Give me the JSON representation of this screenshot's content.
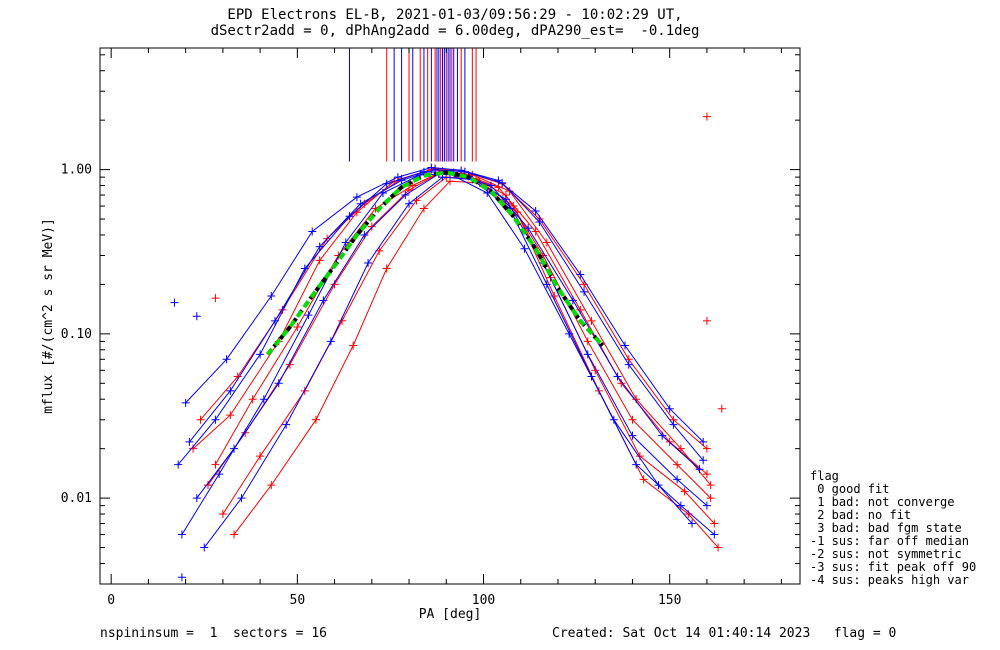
{
  "title_line1": "EPD Electrons EL-B, 2021-01-03/09:56:29 - 10:02:29 UT,",
  "title_line2": "dSectr2add = 0, dPhAng2add = 6.00deg, dPA290_est=  -0.1deg",
  "footer_left": "nspininsum =  1  sectors = 16",
  "footer_right": "Created: Sat Oct 14 01:40:14 2023   flag = 0",
  "legend": {
    "title": "flag",
    "items": [
      " 0 good fit",
      " 1 bad: not converge",
      " 2 bad: no fit",
      " 3 bad: bad fgm state",
      "-1 sus: far off median",
      "-2 sus: not symmetric",
      "-3 sus: fit peak off 90",
      "-4 sus: peaks high var"
    ]
  },
  "colors": {
    "series_red": "#ff0000",
    "series_blue": "#0000ff",
    "fit_green": "#00dd00",
    "fit_black": "#000000"
  },
  "chart_data": {
    "type": "line",
    "xlabel": "PA [deg]",
    "ylabel": "mflux [#/(cm^2 s sr MeV)]",
    "xlim": [
      -3,
      185
    ],
    "ylim": [
      0.003,
      5.5
    ],
    "yscale": "log",
    "xticks": [
      0,
      50,
      100,
      150
    ],
    "xtick_labels": [
      "0",
      "50",
      "100",
      "150"
    ],
    "yticks": [
      0.01,
      0.1,
      1.0
    ],
    "ytick_labels": [
      "0.01",
      "0.10",
      "1.00"
    ],
    "grid": false,
    "legend_position": "lower-right outside",
    "series": [
      {
        "color": "red",
        "pa": [
          22,
          32,
          45,
          56,
          66,
          76,
          86,
          94,
          104,
          114,
          126,
          137,
          150,
          160
        ],
        "flux": [
          0.02,
          0.032,
          0.09,
          0.28,
          0.55,
          0.85,
          1.0,
          0.95,
          0.78,
          0.42,
          0.14,
          0.05,
          0.022,
          0.014
        ]
      },
      {
        "color": "red",
        "pa": [
          26,
          36,
          48,
          60,
          70,
          80,
          88,
          96,
          106,
          116,
          128,
          140,
          152,
          161
        ],
        "flux": [
          0.012,
          0.025,
          0.065,
          0.2,
          0.45,
          0.75,
          0.95,
          0.92,
          0.7,
          0.3,
          0.09,
          0.03,
          0.016,
          0.01
        ]
      },
      {
        "color": "red",
        "pa": [
          30,
          40,
          52,
          62,
          72,
          82,
          90,
          98,
          108,
          118,
          130,
          142,
          154,
          162
        ],
        "flux": [
          0.008,
          0.018,
          0.045,
          0.12,
          0.32,
          0.65,
          0.9,
          0.88,
          0.6,
          0.22,
          0.06,
          0.018,
          0.011,
          0.007
        ]
      },
      {
        "color": "red",
        "pa": [
          24,
          34,
          46,
          58,
          68,
          78,
          87,
          95,
          105,
          115,
          127,
          139,
          151,
          160
        ],
        "flux": [
          0.03,
          0.055,
          0.14,
          0.38,
          0.62,
          0.88,
          1.02,
          0.97,
          0.82,
          0.5,
          0.2,
          0.07,
          0.03,
          0.02
        ]
      },
      {
        "color": "red",
        "pa": [
          33,
          43,
          55,
          65,
          74,
          84,
          91,
          99,
          109,
          119,
          131,
          143,
          155,
          163
        ],
        "flux": [
          0.006,
          0.012,
          0.03,
          0.085,
          0.25,
          0.58,
          0.85,
          0.83,
          0.55,
          0.17,
          0.045,
          0.013,
          0.008,
          0.005
        ]
      },
      {
        "color": "red",
        "pa": [
          28,
          38,
          50,
          61,
          71,
          81,
          89,
          97,
          107,
          117,
          129,
          141,
          153,
          161
        ],
        "flux": [
          0.016,
          0.04,
          0.11,
          0.3,
          0.58,
          0.8,
          0.98,
          0.93,
          0.74,
          0.36,
          0.12,
          0.04,
          0.02,
          0.012
        ]
      },
      {
        "color": "blue",
        "pa": [
          18,
          28,
          40,
          52,
          64,
          74,
          84,
          92,
          102,
          112,
          124,
          136,
          148,
          158
        ],
        "flux": [
          0.016,
          0.03,
          0.075,
          0.25,
          0.52,
          0.82,
          0.97,
          0.96,
          0.8,
          0.44,
          0.16,
          0.055,
          0.024,
          0.015
        ]
      },
      {
        "color": "blue",
        "pa": [
          20,
          31,
          43,
          54,
          66,
          77,
          86,
          94,
          104,
          114,
          126,
          138,
          150,
          159
        ],
        "flux": [
          0.038,
          0.07,
          0.17,
          0.42,
          0.68,
          0.9,
          1.03,
          0.99,
          0.86,
          0.56,
          0.23,
          0.085,
          0.035,
          0.022
        ]
      },
      {
        "color": "blue",
        "pa": [
          23,
          33,
          45,
          57,
          68,
          79,
          88,
          96,
          106,
          116,
          128,
          140,
          152,
          160
        ],
        "flux": [
          0.01,
          0.02,
          0.05,
          0.16,
          0.4,
          0.7,
          0.94,
          0.91,
          0.66,
          0.27,
          0.075,
          0.024,
          0.013,
          0.009
        ]
      },
      {
        "color": "blue",
        "pa": [
          19,
          29,
          41,
          53,
          63,
          73,
          83,
          91,
          101,
          111,
          123,
          135,
          147,
          156
        ],
        "flux": [
          0.006,
          0.014,
          0.04,
          0.13,
          0.36,
          0.72,
          0.93,
          0.94,
          0.72,
          0.33,
          0.1,
          0.03,
          0.012,
          0.007
        ]
      },
      {
        "color": "blue",
        "pa": [
          21,
          32,
          44,
          56,
          67,
          78,
          87,
          95,
          105,
          115,
          127,
          139,
          151,
          159
        ],
        "flux": [
          0.022,
          0.045,
          0.12,
          0.34,
          0.62,
          0.86,
          1.0,
          0.97,
          0.83,
          0.48,
          0.18,
          0.065,
          0.028,
          0.017
        ]
      },
      {
        "color": "blue",
        "pa": [
          25,
          35,
          47,
          59,
          69,
          80,
          89,
          97,
          107,
          117,
          129,
          141,
          153,
          162
        ],
        "flux": [
          0.005,
          0.01,
          0.028,
          0.09,
          0.27,
          0.62,
          0.9,
          0.87,
          0.58,
          0.2,
          0.055,
          0.016,
          0.009,
          0.006
        ]
      }
    ],
    "isolated_points": [
      {
        "color": "red",
        "pa": 160,
        "flux": 2.1
      },
      {
        "color": "blue",
        "pa": 17,
        "flux": 0.155
      },
      {
        "color": "blue",
        "pa": 23,
        "flux": 0.128
      },
      {
        "color": "red",
        "pa": 28,
        "flux": 0.165
      },
      {
        "color": "red",
        "pa": 164,
        "flux": 0.035
      },
      {
        "color": "blue",
        "pa": 19,
        "flux": 0.0033
      },
      {
        "color": "red",
        "pa": 160,
        "flux": 0.12
      }
    ],
    "spike_lines": [
      {
        "color": "blue",
        "pa": 64
      },
      {
        "color": "red",
        "pa": 74
      },
      {
        "color": "blue",
        "pa": 76
      },
      {
        "color": "blue",
        "pa": 78
      },
      {
        "color": "red",
        "pa": 80
      },
      {
        "color": "blue",
        "pa": 81
      },
      {
        "color": "red",
        "pa": 83
      },
      {
        "color": "blue",
        "pa": 84
      },
      {
        "color": "red",
        "pa": 85
      },
      {
        "color": "blue",
        "pa": 86
      },
      {
        "color": "red",
        "pa": 87
      },
      {
        "color": "blue",
        "pa": 87.5
      },
      {
        "color": "blue",
        "pa": 88
      },
      {
        "color": "red",
        "pa": 88.5
      },
      {
        "color": "blue",
        "pa": 89
      },
      {
        "color": "blue",
        "pa": 89.5
      },
      {
        "color": "red",
        "pa": 90
      },
      {
        "color": "blue",
        "pa": 90.5
      },
      {
        "color": "blue",
        "pa": 91
      },
      {
        "color": "red",
        "pa": 91.5
      },
      {
        "color": "blue",
        "pa": 92
      },
      {
        "color": "blue",
        "pa": 93
      },
      {
        "color": "red",
        "pa": 94
      },
      {
        "color": "blue",
        "pa": 95
      },
      {
        "color": "red",
        "pa": 97
      },
      {
        "color": "red",
        "pa": 98
      }
    ],
    "spike_bottom_flux": 1.12,
    "fit_curve": {
      "color": "green",
      "style": "dashed",
      "pa": [
        42,
        48,
        54,
        60,
        66,
        72,
        78,
        84,
        90,
        96,
        102,
        108,
        114,
        120,
        126,
        132
      ],
      "flux": [
        0.075,
        0.11,
        0.17,
        0.26,
        0.4,
        0.58,
        0.78,
        0.92,
        0.96,
        0.9,
        0.74,
        0.52,
        0.33,
        0.19,
        0.12,
        0.085
      ]
    }
  }
}
